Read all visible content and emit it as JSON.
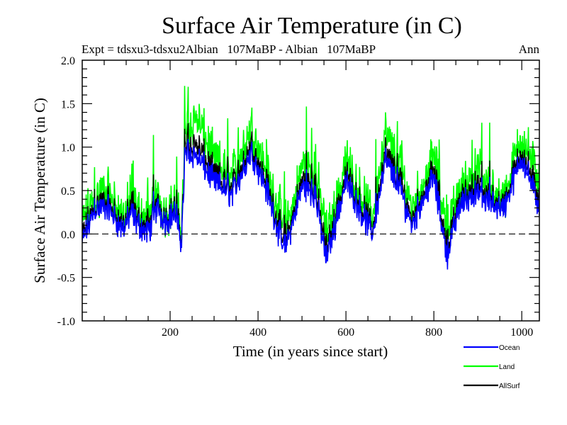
{
  "chart_data": {
    "type": "line",
    "title": "Surface Air Temperature (in C)",
    "subtitle_left": "Expt = tdsxu3-tdsxu2Albian   107MaBP - Albian   107MaBP",
    "subtitle_right": "Ann",
    "xlabel": "Time (in years since start)",
    "ylabel": "Surface Air Temperature (in C)",
    "xlim": [
      0,
      1040
    ],
    "ylim": [
      -1.0,
      2.0
    ],
    "x_ticks": [
      200,
      400,
      600,
      800,
      1000
    ],
    "x_tick_labels": [
      "200",
      "400",
      "600",
      "800",
      "1000"
    ],
    "x_minor_step": 50,
    "y_ticks": [
      -1.0,
      -0.5,
      0.0,
      0.5,
      1.0,
      1.5,
      2.0
    ],
    "y_tick_labels": [
      "-1.0",
      "-0.5",
      "0.0",
      "0.5",
      "1.0",
      "1.5",
      "2.0"
    ],
    "y_minor_step": 0.1,
    "grid": false,
    "reference_line": {
      "y": 0.0,
      "style": "dashed",
      "color": "#000000"
    },
    "legend_position": "bottom-right",
    "series": [
      {
        "name": "Land",
        "color": "#00ff00",
        "description": "annual land-mean anomaly; higher variance, peaks ~1.75 near year 230-260, min ~-0.9 near year 660",
        "keypoints": [
          [
            0,
            0.1
          ],
          [
            30,
            0.45
          ],
          [
            60,
            0.5
          ],
          [
            90,
            0.2
          ],
          [
            110,
            0.35
          ],
          [
            150,
            0.15
          ],
          [
            170,
            0.4
          ],
          [
            190,
            0.25
          ],
          [
            210,
            0.35
          ],
          [
            225,
            0.05
          ],
          [
            235,
            1.2
          ],
          [
            260,
            1.35
          ],
          [
            300,
            0.85
          ],
          [
            340,
            0.65
          ],
          [
            385,
            1.25
          ],
          [
            420,
            0.7
          ],
          [
            460,
            0.1
          ],
          [
            480,
            0.3
          ],
          [
            500,
            0.8
          ],
          [
            530,
            0.75
          ],
          [
            555,
            0.0
          ],
          [
            580,
            0.35
          ],
          [
            600,
            0.85
          ],
          [
            620,
            0.6
          ],
          [
            660,
            0.2
          ],
          [
            690,
            1.15
          ],
          [
            720,
            0.8
          ],
          [
            750,
            0.3
          ],
          [
            770,
            0.5
          ],
          [
            800,
            0.9
          ],
          [
            830,
            0.05
          ],
          [
            860,
            0.5
          ],
          [
            890,
            0.7
          ],
          [
            930,
            0.5
          ],
          [
            960,
            0.4
          ],
          [
            1000,
            1.15
          ],
          [
            1040,
            0.6
          ]
        ]
      },
      {
        "name": "Ocean",
        "color": "#0000ff",
        "description": "annual ocean-mean anomaly; tracks Land with smaller amplitude, peaks ~1.2, min ~-0.6",
        "keypoints": [
          [
            0,
            -0.1
          ],
          [
            30,
            0.3
          ],
          [
            60,
            0.3
          ],
          [
            90,
            0.05
          ],
          [
            110,
            0.2
          ],
          [
            150,
            0.0
          ],
          [
            170,
            0.3
          ],
          [
            190,
            0.15
          ],
          [
            210,
            0.25
          ],
          [
            225,
            -0.1
          ],
          [
            235,
            0.95
          ],
          [
            260,
            0.9
          ],
          [
            300,
            0.6
          ],
          [
            340,
            0.45
          ],
          [
            385,
            0.95
          ],
          [
            420,
            0.5
          ],
          [
            460,
            -0.2
          ],
          [
            480,
            0.15
          ],
          [
            500,
            0.55
          ],
          [
            530,
            0.45
          ],
          [
            555,
            -0.3
          ],
          [
            580,
            0.2
          ],
          [
            600,
            0.6
          ],
          [
            620,
            0.4
          ],
          [
            660,
            0.0
          ],
          [
            690,
            0.85
          ],
          [
            720,
            0.55
          ],
          [
            750,
            0.1
          ],
          [
            770,
            0.35
          ],
          [
            800,
            0.65
          ],
          [
            830,
            -0.25
          ],
          [
            860,
            0.35
          ],
          [
            890,
            0.45
          ],
          [
            930,
            0.35
          ],
          [
            960,
            0.3
          ],
          [
            1000,
            0.9
          ],
          [
            1040,
            0.3
          ]
        ]
      },
      {
        "name": "AllSurf",
        "color": "#000000",
        "description": "all-surface mean; lies between Ocean and Land, mostly hidden beneath Ocean trace"
      }
    ]
  }
}
